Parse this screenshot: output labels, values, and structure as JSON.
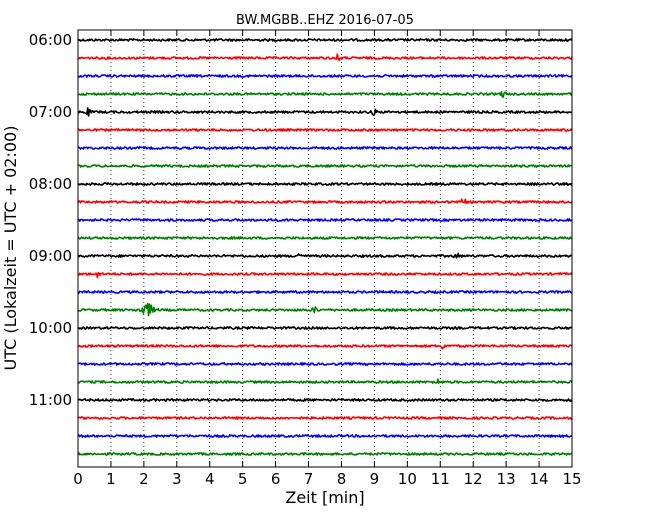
{
  "chart_data": {
    "type": "line",
    "title": "BW.MGBB..EHZ 2016-07-05",
    "xlabel": "Zeit  [min]",
    "ylabel": "UTC (Lokalzeit = UTC + 02:00)",
    "xlim": [
      0,
      15
    ],
    "x_ticks": [
      0,
      1,
      2,
      3,
      4,
      5,
      6,
      7,
      8,
      9,
      10,
      11,
      12,
      13,
      14,
      15
    ],
    "x_grid": "dotted vertical at each minute",
    "trace_minutes_per_line": 15,
    "trace_colors": [
      "#000000",
      "#ff0000",
      "#0000ff",
      "#008000"
    ],
    "y_ticks": [
      {
        "label": "06:00",
        "trace_index": 0
      },
      {
        "label": "07:00",
        "trace_index": 4
      },
      {
        "label": "08:00",
        "trace_index": 8
      },
      {
        "label": "09:00",
        "trace_index": 12
      },
      {
        "label": "10:00",
        "trace_index": 16
      },
      {
        "label": "11:00",
        "trace_index": 20
      }
    ],
    "series": [
      {
        "start": "06:00",
        "color": "#000000",
        "events": []
      },
      {
        "start": "06:15",
        "color": "#ff0000",
        "events": [
          {
            "t": 7.9,
            "amp": 1.5
          }
        ]
      },
      {
        "start": "06:30",
        "color": "#0000ff",
        "events": []
      },
      {
        "start": "06:45",
        "color": "#008000",
        "events": [
          {
            "t": 12.9,
            "amp": 1.3
          }
        ]
      },
      {
        "start": "07:00",
        "color": "#000000",
        "events": [
          {
            "t": 0.3,
            "amp": 1.5
          },
          {
            "t": 9.0,
            "amp": 1.3
          }
        ]
      },
      {
        "start": "07:15",
        "color": "#ff0000",
        "events": []
      },
      {
        "start": "07:30",
        "color": "#0000ff",
        "events": []
      },
      {
        "start": "07:45",
        "color": "#008000",
        "events": []
      },
      {
        "start": "08:00",
        "color": "#000000",
        "events": [
          {
            "t": 13.9,
            "amp": 1.2
          }
        ]
      },
      {
        "start": "08:15",
        "color": "#ff0000",
        "events": [
          {
            "t": 11.7,
            "amp": 1.4
          }
        ]
      },
      {
        "start": "08:30",
        "color": "#0000ff",
        "events": []
      },
      {
        "start": "08:45",
        "color": "#008000",
        "events": []
      },
      {
        "start": "09:00",
        "color": "#000000",
        "events": [
          {
            "t": 6.7,
            "amp": 1.6
          },
          {
            "t": 11.5,
            "amp": 1.3
          }
        ]
      },
      {
        "start": "09:15",
        "color": "#ff0000",
        "events": [
          {
            "t": 0.6,
            "amp": 1.3
          }
        ]
      },
      {
        "start": "09:30",
        "color": "#0000ff",
        "events": []
      },
      {
        "start": "09:45",
        "color": "#008000",
        "events": [
          {
            "t": 2.1,
            "amp": 2.8
          },
          {
            "t": 7.2,
            "amp": 1.3
          }
        ]
      },
      {
        "start": "10:00",
        "color": "#000000",
        "events": []
      },
      {
        "start": "10:15",
        "color": "#ff0000",
        "events": [
          {
            "t": 11.1,
            "amp": 1.2
          }
        ]
      },
      {
        "start": "10:30",
        "color": "#0000ff",
        "events": []
      },
      {
        "start": "10:45",
        "color": "#008000",
        "events": [
          {
            "t": 10.9,
            "amp": 1.4
          }
        ]
      },
      {
        "start": "11:00",
        "color": "#000000",
        "events": []
      },
      {
        "start": "11:15",
        "color": "#ff0000",
        "events": []
      },
      {
        "start": "11:30",
        "color": "#0000ff",
        "events": []
      },
      {
        "start": "11:45",
        "color": "#008000",
        "events": []
      }
    ]
  }
}
